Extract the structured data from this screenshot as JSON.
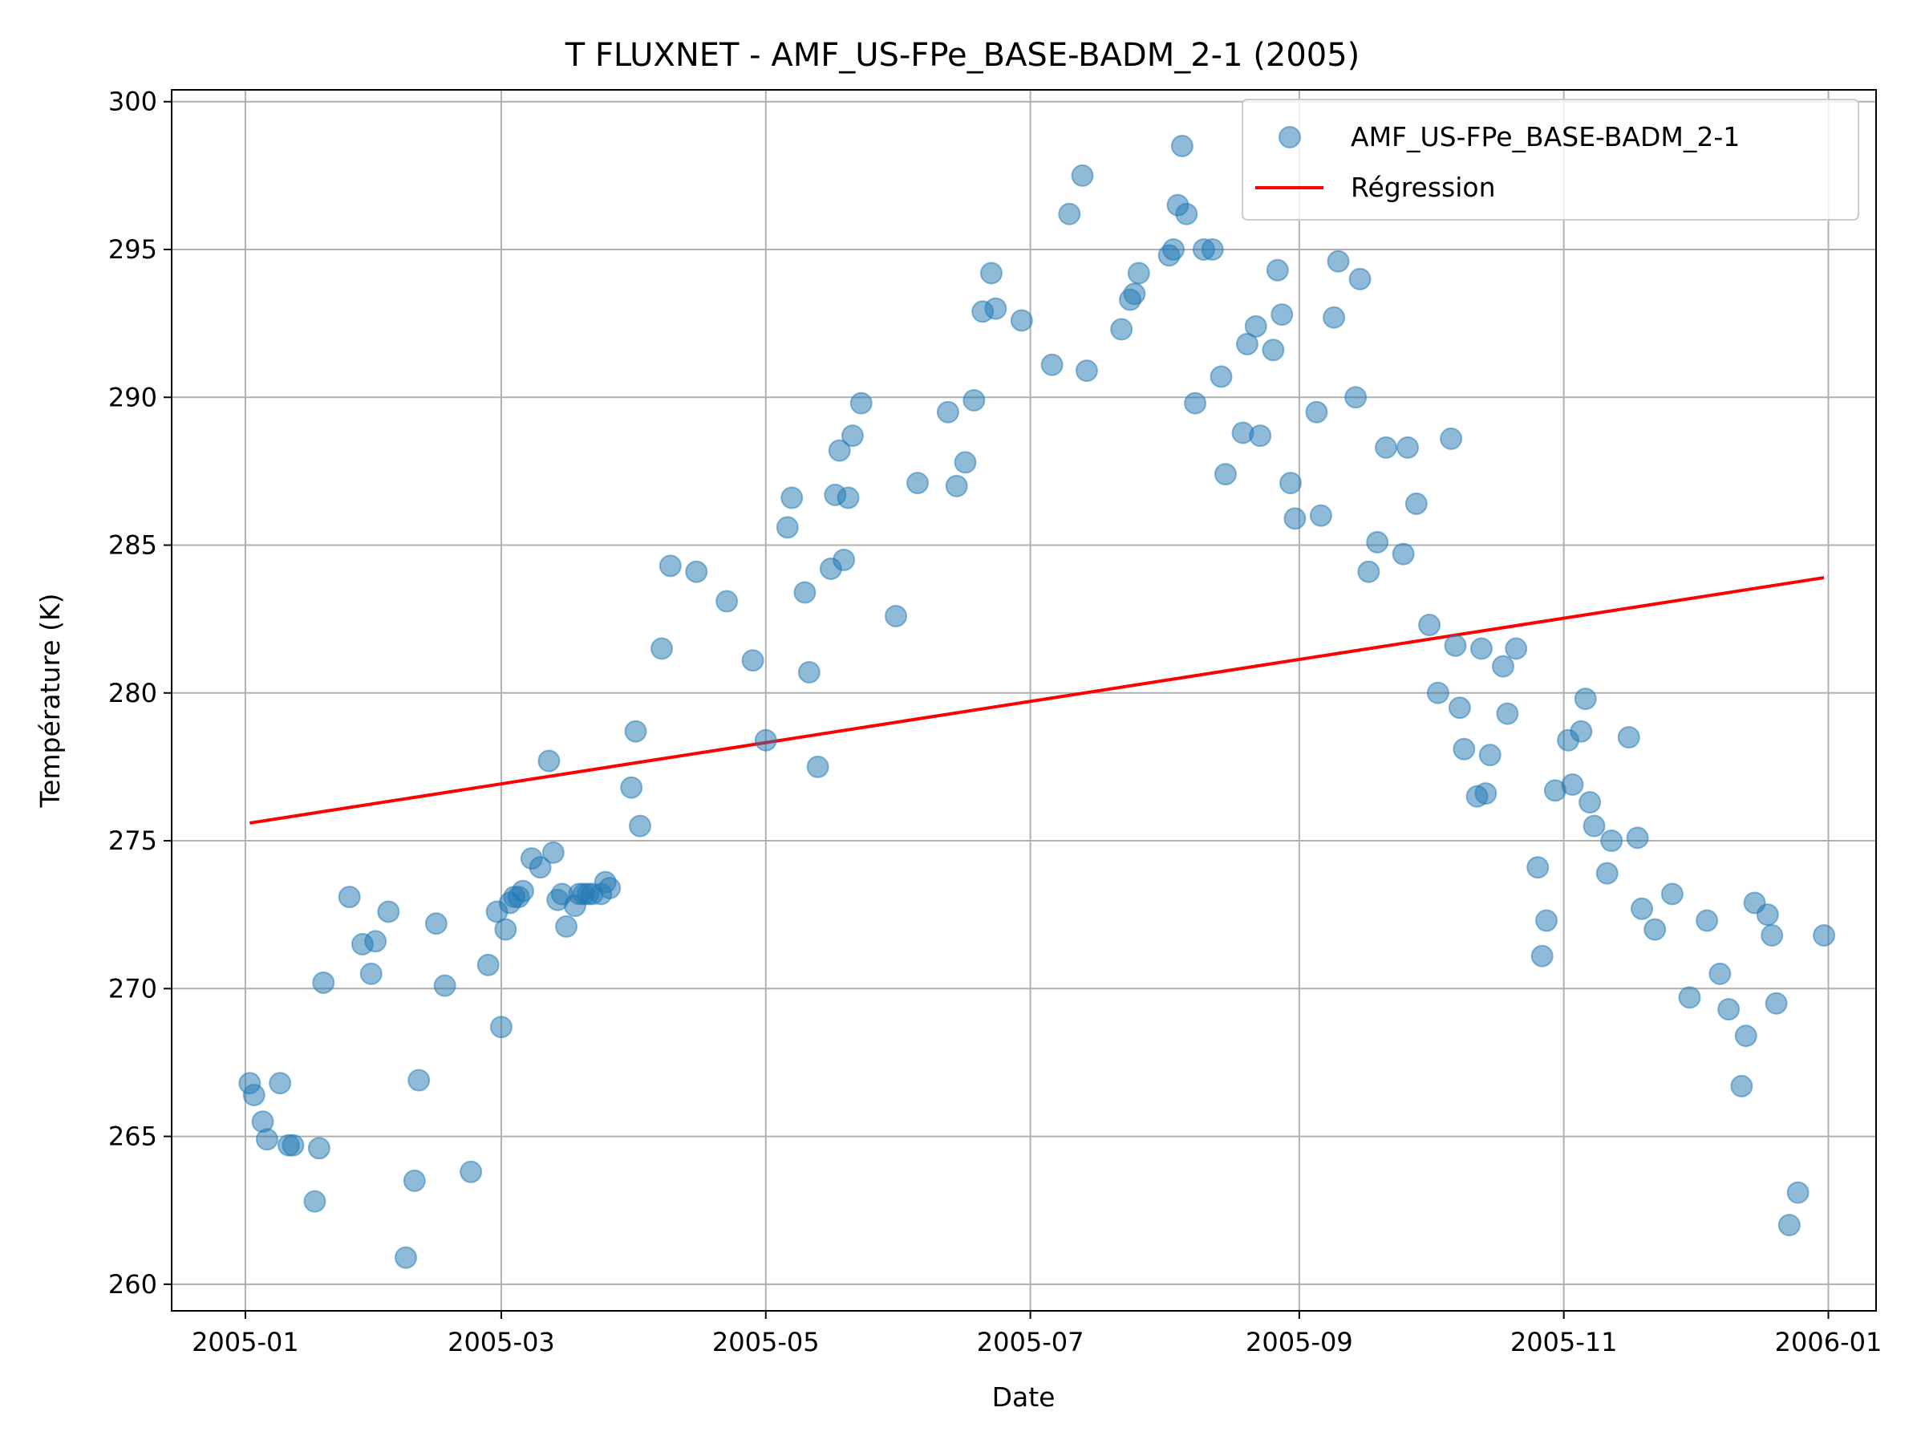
{
  "chart_data": {
    "type": "scatter",
    "title": "T FLUXNET - AMF_US-FPe_BASE-BADM_2-1 (2005)",
    "xlabel": "Date",
    "ylabel": "Température (K)",
    "xlim": [
      "2004-12-15",
      "2006-01-12"
    ],
    "ylim": [
      259.1,
      300.4
    ],
    "x_ticks": [
      {
        "date": "2005-01-01",
        "label": "2005-01"
      },
      {
        "date": "2005-03-01",
        "label": "2005-03"
      },
      {
        "date": "2005-05-01",
        "label": "2005-05"
      },
      {
        "date": "2005-07-01",
        "label": "2005-07"
      },
      {
        "date": "2005-09-01",
        "label": "2005-09"
      },
      {
        "date": "2005-11-01",
        "label": "2005-11"
      },
      {
        "date": "2006-01-01",
        "label": "2006-01"
      }
    ],
    "y_ticks": [
      260,
      265,
      270,
      275,
      280,
      285,
      290,
      295,
      300
    ],
    "grid": true,
    "legend": {
      "placement": "top-right",
      "entries": [
        {
          "label": "AMF_US-FPe_BASE-BADM_2-1",
          "kind": "marker",
          "color": "#1f77b4"
        },
        {
          "label": "Régression",
          "kind": "line",
          "color": "#ff0000"
        }
      ]
    },
    "series": [
      {
        "name": "AMF_US-FPe_BASE-BADM_2-1",
        "kind": "scatter",
        "color": "#1f77b4",
        "alpha": 0.5,
        "points": [
          [
            "2005-01-02",
            266.8
          ],
          [
            "2005-01-03",
            266.4
          ],
          [
            "2005-01-05",
            265.5
          ],
          [
            "2005-01-06",
            264.9
          ],
          [
            "2005-01-09",
            266.8
          ],
          [
            "2005-01-11",
            264.7
          ],
          [
            "2005-01-12",
            264.7
          ],
          [
            "2005-01-17",
            262.8
          ],
          [
            "2005-01-18",
            264.6
          ],
          [
            "2005-01-19",
            270.2
          ],
          [
            "2005-01-25",
            273.1
          ],
          [
            "2005-01-28",
            271.5
          ],
          [
            "2005-01-30",
            270.5
          ],
          [
            "2005-01-31",
            271.6
          ],
          [
            "2005-02-03",
            272.6
          ],
          [
            "2005-02-07",
            260.9
          ],
          [
            "2005-02-09",
            263.5
          ],
          [
            "2005-02-10",
            266.9
          ],
          [
            "2005-02-14",
            272.2
          ],
          [
            "2005-02-16",
            270.1
          ],
          [
            "2005-02-22",
            263.8
          ],
          [
            "2005-02-26",
            270.8
          ],
          [
            "2005-02-28",
            272.6
          ],
          [
            "2005-03-01",
            268.7
          ],
          [
            "2005-03-02",
            272.0
          ],
          [
            "2005-03-03",
            272.9
          ],
          [
            "2005-03-04",
            273.1
          ],
          [
            "2005-03-05",
            273.1
          ],
          [
            "2005-03-06",
            273.3
          ],
          [
            "2005-03-08",
            274.4
          ],
          [
            "2005-03-10",
            274.1
          ],
          [
            "2005-03-12",
            277.7
          ],
          [
            "2005-03-13",
            274.6
          ],
          [
            "2005-03-14",
            273.0
          ],
          [
            "2005-03-15",
            273.2
          ],
          [
            "2005-03-16",
            272.1
          ],
          [
            "2005-03-18",
            272.8
          ],
          [
            "2005-03-19",
            273.2
          ],
          [
            "2005-03-20",
            273.2
          ],
          [
            "2005-03-21",
            273.2
          ],
          [
            "2005-03-22",
            273.2
          ],
          [
            "2005-03-24",
            273.2
          ],
          [
            "2005-03-25",
            273.6
          ],
          [
            "2005-03-26",
            273.4
          ],
          [
            "2005-03-31",
            276.8
          ],
          [
            "2005-04-01",
            278.7
          ],
          [
            "2005-04-02",
            275.5
          ],
          [
            "2005-04-07",
            281.5
          ],
          [
            "2005-04-09",
            284.3
          ],
          [
            "2005-04-15",
            284.1
          ],
          [
            "2005-04-22",
            283.1
          ],
          [
            "2005-04-28",
            281.1
          ],
          [
            "2005-05-01",
            278.4
          ],
          [
            "2005-05-06",
            285.6
          ],
          [
            "2005-05-07",
            286.6
          ],
          [
            "2005-05-10",
            283.4
          ],
          [
            "2005-05-11",
            280.7
          ],
          [
            "2005-05-13",
            277.5
          ],
          [
            "2005-05-16",
            284.2
          ],
          [
            "2005-05-17",
            286.7
          ],
          [
            "2005-05-18",
            288.2
          ],
          [
            "2005-05-19",
            284.5
          ],
          [
            "2005-05-20",
            286.6
          ],
          [
            "2005-05-21",
            288.7
          ],
          [
            "2005-05-23",
            289.8
          ],
          [
            "2005-05-31",
            282.6
          ],
          [
            "2005-06-05",
            287.1
          ],
          [
            "2005-06-12",
            289.5
          ],
          [
            "2005-06-14",
            287.0
          ],
          [
            "2005-06-16",
            287.8
          ],
          [
            "2005-06-18",
            289.9
          ],
          [
            "2005-06-20",
            292.9
          ],
          [
            "2005-06-22",
            294.2
          ],
          [
            "2005-06-23",
            293.0
          ],
          [
            "2005-06-29",
            292.6
          ],
          [
            "2005-07-06",
            291.1
          ],
          [
            "2005-07-10",
            296.2
          ],
          [
            "2005-07-13",
            297.5
          ],
          [
            "2005-07-14",
            290.9
          ],
          [
            "2005-07-22",
            292.3
          ],
          [
            "2005-07-24",
            293.3
          ],
          [
            "2005-07-25",
            293.5
          ],
          [
            "2005-07-26",
            294.2
          ],
          [
            "2005-08-02",
            294.8
          ],
          [
            "2005-08-03",
            295.0
          ],
          [
            "2005-08-04",
            296.5
          ],
          [
            "2005-08-05",
            298.5
          ],
          [
            "2005-08-06",
            296.2
          ],
          [
            "2005-08-08",
            289.8
          ],
          [
            "2005-08-10",
            295.0
          ],
          [
            "2005-08-12",
            295.0
          ],
          [
            "2005-08-14",
            290.7
          ],
          [
            "2005-08-15",
            287.4
          ],
          [
            "2005-08-19",
            288.8
          ],
          [
            "2005-08-20",
            291.8
          ],
          [
            "2005-08-22",
            292.4
          ],
          [
            "2005-08-23",
            288.7
          ],
          [
            "2005-08-26",
            291.6
          ],
          [
            "2005-08-27",
            294.3
          ],
          [
            "2005-08-28",
            292.8
          ],
          [
            "2005-08-30",
            287.1
          ],
          [
            "2005-08-31",
            285.9
          ],
          [
            "2005-09-05",
            289.5
          ],
          [
            "2005-09-06",
            286.0
          ],
          [
            "2005-09-09",
            292.7
          ],
          [
            "2005-09-10",
            294.6
          ],
          [
            "2005-09-14",
            290.0
          ],
          [
            "2005-09-15",
            294.0
          ],
          [
            "2005-09-17",
            284.1
          ],
          [
            "2005-09-19",
            285.1
          ],
          [
            "2005-09-21",
            288.3
          ],
          [
            "2005-09-25",
            284.7
          ],
          [
            "2005-09-26",
            288.3
          ],
          [
            "2005-09-28",
            286.4
          ],
          [
            "2005-10-01",
            282.3
          ],
          [
            "2005-10-03",
            280.0
          ],
          [
            "2005-10-07",
            281.6
          ],
          [
            "2005-10-06",
            288.6
          ],
          [
            "2005-10-08",
            279.5
          ],
          [
            "2005-10-09",
            278.1
          ],
          [
            "2005-10-12",
            276.5
          ],
          [
            "2005-10-13",
            281.5
          ],
          [
            "2005-10-14",
            276.6
          ],
          [
            "2005-10-15",
            277.9
          ],
          [
            "2005-10-18",
            280.9
          ],
          [
            "2005-10-19",
            279.3
          ],
          [
            "2005-10-21",
            281.5
          ],
          [
            "2005-10-26",
            274.1
          ],
          [
            "2005-10-27",
            271.1
          ],
          [
            "2005-10-28",
            272.3
          ],
          [
            "2005-10-30",
            276.7
          ],
          [
            "2005-11-02",
            278.4
          ],
          [
            "2005-11-03",
            276.9
          ],
          [
            "2005-11-05",
            278.7
          ],
          [
            "2005-11-06",
            279.8
          ],
          [
            "2005-11-07",
            276.3
          ],
          [
            "2005-11-08",
            275.5
          ],
          [
            "2005-11-11",
            273.9
          ],
          [
            "2005-11-12",
            275.0
          ],
          [
            "2005-11-16",
            278.5
          ],
          [
            "2005-11-18",
            275.1
          ],
          [
            "2005-11-19",
            272.7
          ],
          [
            "2005-11-22",
            272.0
          ],
          [
            "2005-11-26",
            273.2
          ],
          [
            "2005-11-30",
            269.7
          ],
          [
            "2005-12-04",
            272.3
          ],
          [
            "2005-12-07",
            270.5
          ],
          [
            "2005-12-09",
            269.3
          ],
          [
            "2005-12-12",
            266.7
          ],
          [
            "2005-12-13",
            268.4
          ],
          [
            "2005-12-15",
            272.9
          ],
          [
            "2005-12-18",
            272.5
          ],
          [
            "2005-12-19",
            271.8
          ],
          [
            "2005-12-20",
            269.5
          ],
          [
            "2005-12-23",
            262.0
          ],
          [
            "2005-12-25",
            263.1
          ],
          [
            "2005-12-31",
            271.8
          ]
        ]
      },
      {
        "name": "Régression",
        "kind": "line",
        "color": "#ff0000",
        "points": [
          [
            "2005-01-02",
            275.6
          ],
          [
            "2005-12-31",
            283.9
          ]
        ]
      }
    ]
  }
}
